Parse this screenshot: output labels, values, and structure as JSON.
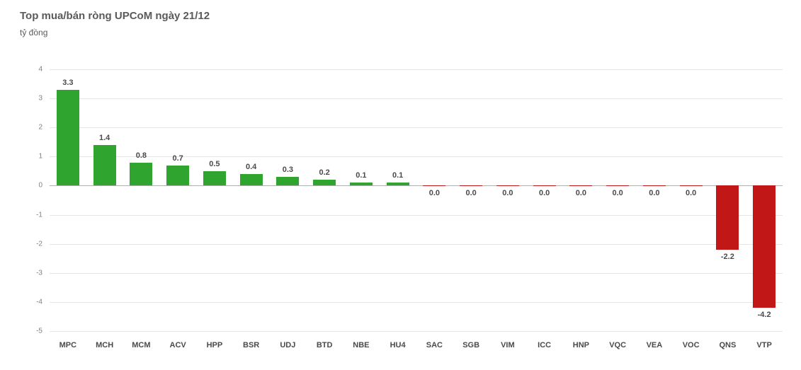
{
  "title": "Top mua/bán ròng UPCoM ngày 21/12",
  "subtitle": "tỷ đồng",
  "chart": {
    "type": "bar",
    "ylim": [
      -5,
      4
    ],
    "ytick_step": 1,
    "grid_color": "#e5e5e5",
    "baseline_color": "#b0b0b0",
    "background_color": "#ffffff",
    "positive_color": "#2fa52f",
    "negative_color": "#c21717",
    "title_fontsize": 15,
    "subtitle_fontsize": 12,
    "ytick_fontsize": 10,
    "xtick_fontsize": 11,
    "xtick_fontweight": "bold",
    "barlabel_fontsize": 11,
    "barlabel_fontweight": "bold",
    "bar_width_ratio": 0.62,
    "categories": [
      "MPC",
      "MCH",
      "MCM",
      "ACV",
      "HPP",
      "BSR",
      "UDJ",
      "BTD",
      "NBE",
      "HU4",
      "SAC",
      "SGB",
      "VIM",
      "ICC",
      "HNP",
      "VQC",
      "VEA",
      "VOC",
      "QNS",
      "VTP"
    ],
    "values": [
      3.3,
      1.4,
      0.8,
      0.7,
      0.5,
      0.4,
      0.3,
      0.2,
      0.1,
      0.1,
      -0.01,
      -0.01,
      -0.01,
      -0.01,
      -0.01,
      -0.01,
      -0.01,
      -0.01,
      -2.2,
      -4.2
    ],
    "value_labels": [
      "3.3",
      "1.4",
      "0.8",
      "0.7",
      "0.5",
      "0.4",
      "0.3",
      "0.2",
      "0.1",
      "0.1",
      "0.0",
      "0.0",
      "0.0",
      "0.0",
      "0.0",
      "0.0",
      "0.0",
      "0.0",
      "-2.2",
      "-4.2"
    ]
  }
}
